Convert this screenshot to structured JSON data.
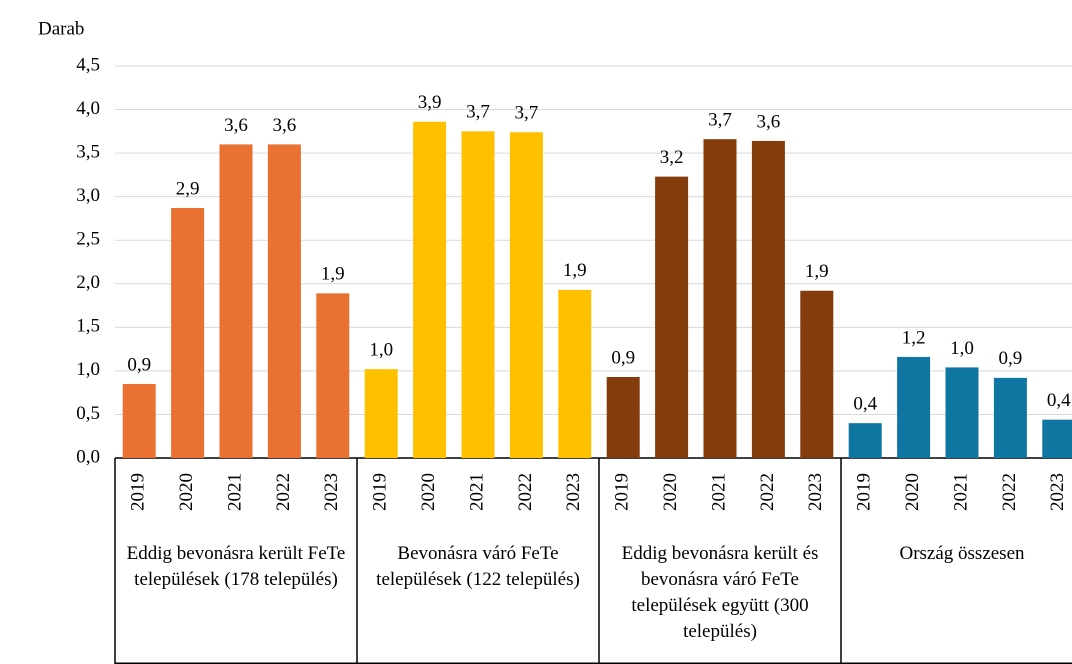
{
  "chart_data": {
    "type": "bar",
    "y_label": "Darab",
    "ylim": [
      0,
      4.5
    ],
    "yticks": [
      {
        "value": 0,
        "label": "0,0"
      },
      {
        "value": 0.5,
        "label": "0,5"
      },
      {
        "value": 1,
        "label": "1,0"
      },
      {
        "value": 1.5,
        "label": "1,5"
      },
      {
        "value": 2,
        "label": "2,0"
      },
      {
        "value": 2.5,
        "label": "2,5"
      },
      {
        "value": 3,
        "label": "3,0"
      },
      {
        "value": 3.5,
        "label": "3,5"
      },
      {
        "value": 4,
        "label": "4,0"
      },
      {
        "value": 4.5,
        "label": "4,5"
      }
    ],
    "grid": true,
    "groups": [
      {
        "name": "Eddig bevonásra került FeTe települések (178 település)",
        "color": "#e97132",
        "categories": [
          "2019",
          "2020",
          "2021",
          "2022",
          "2023"
        ],
        "values": [
          0.85,
          2.87,
          3.6,
          3.6,
          1.89
        ],
        "value_labels": [
          "0,9",
          "2,9",
          "3,6",
          "3,6",
          "1,9"
        ]
      },
      {
        "name": "Bevonásra váró FeTe települések (122 település)",
        "color": "#ffc000",
        "categories": [
          "2019",
          "2020",
          "2021",
          "2022",
          "2023"
        ],
        "values": [
          1.02,
          3.86,
          3.75,
          3.74,
          1.93
        ],
        "value_labels": [
          "1,0",
          "3,9",
          "3,7",
          "3,7",
          "1,9"
        ]
      },
      {
        "name": "Eddig bevonásra került és bevonásra váró FeTe települések együtt (300 település)",
        "color": "#843c0c",
        "categories": [
          "2019",
          "2020",
          "2021",
          "2022",
          "2023"
        ],
        "values": [
          0.93,
          3.23,
          3.66,
          3.64,
          1.92
        ],
        "value_labels": [
          "0,9",
          "3,2",
          "3,7",
          "3,6",
          "1,9"
        ]
      },
      {
        "name": "Ország összesen",
        "color": "#0e76a0",
        "categories": [
          "2019",
          "2020",
          "2021",
          "2022",
          "2023"
        ],
        "values": [
          0.4,
          1.16,
          1.04,
          0.92,
          0.44
        ],
        "value_labels": [
          "0,4",
          "1,2",
          "1,0",
          "0,9",
          "0,4"
        ]
      }
    ]
  }
}
